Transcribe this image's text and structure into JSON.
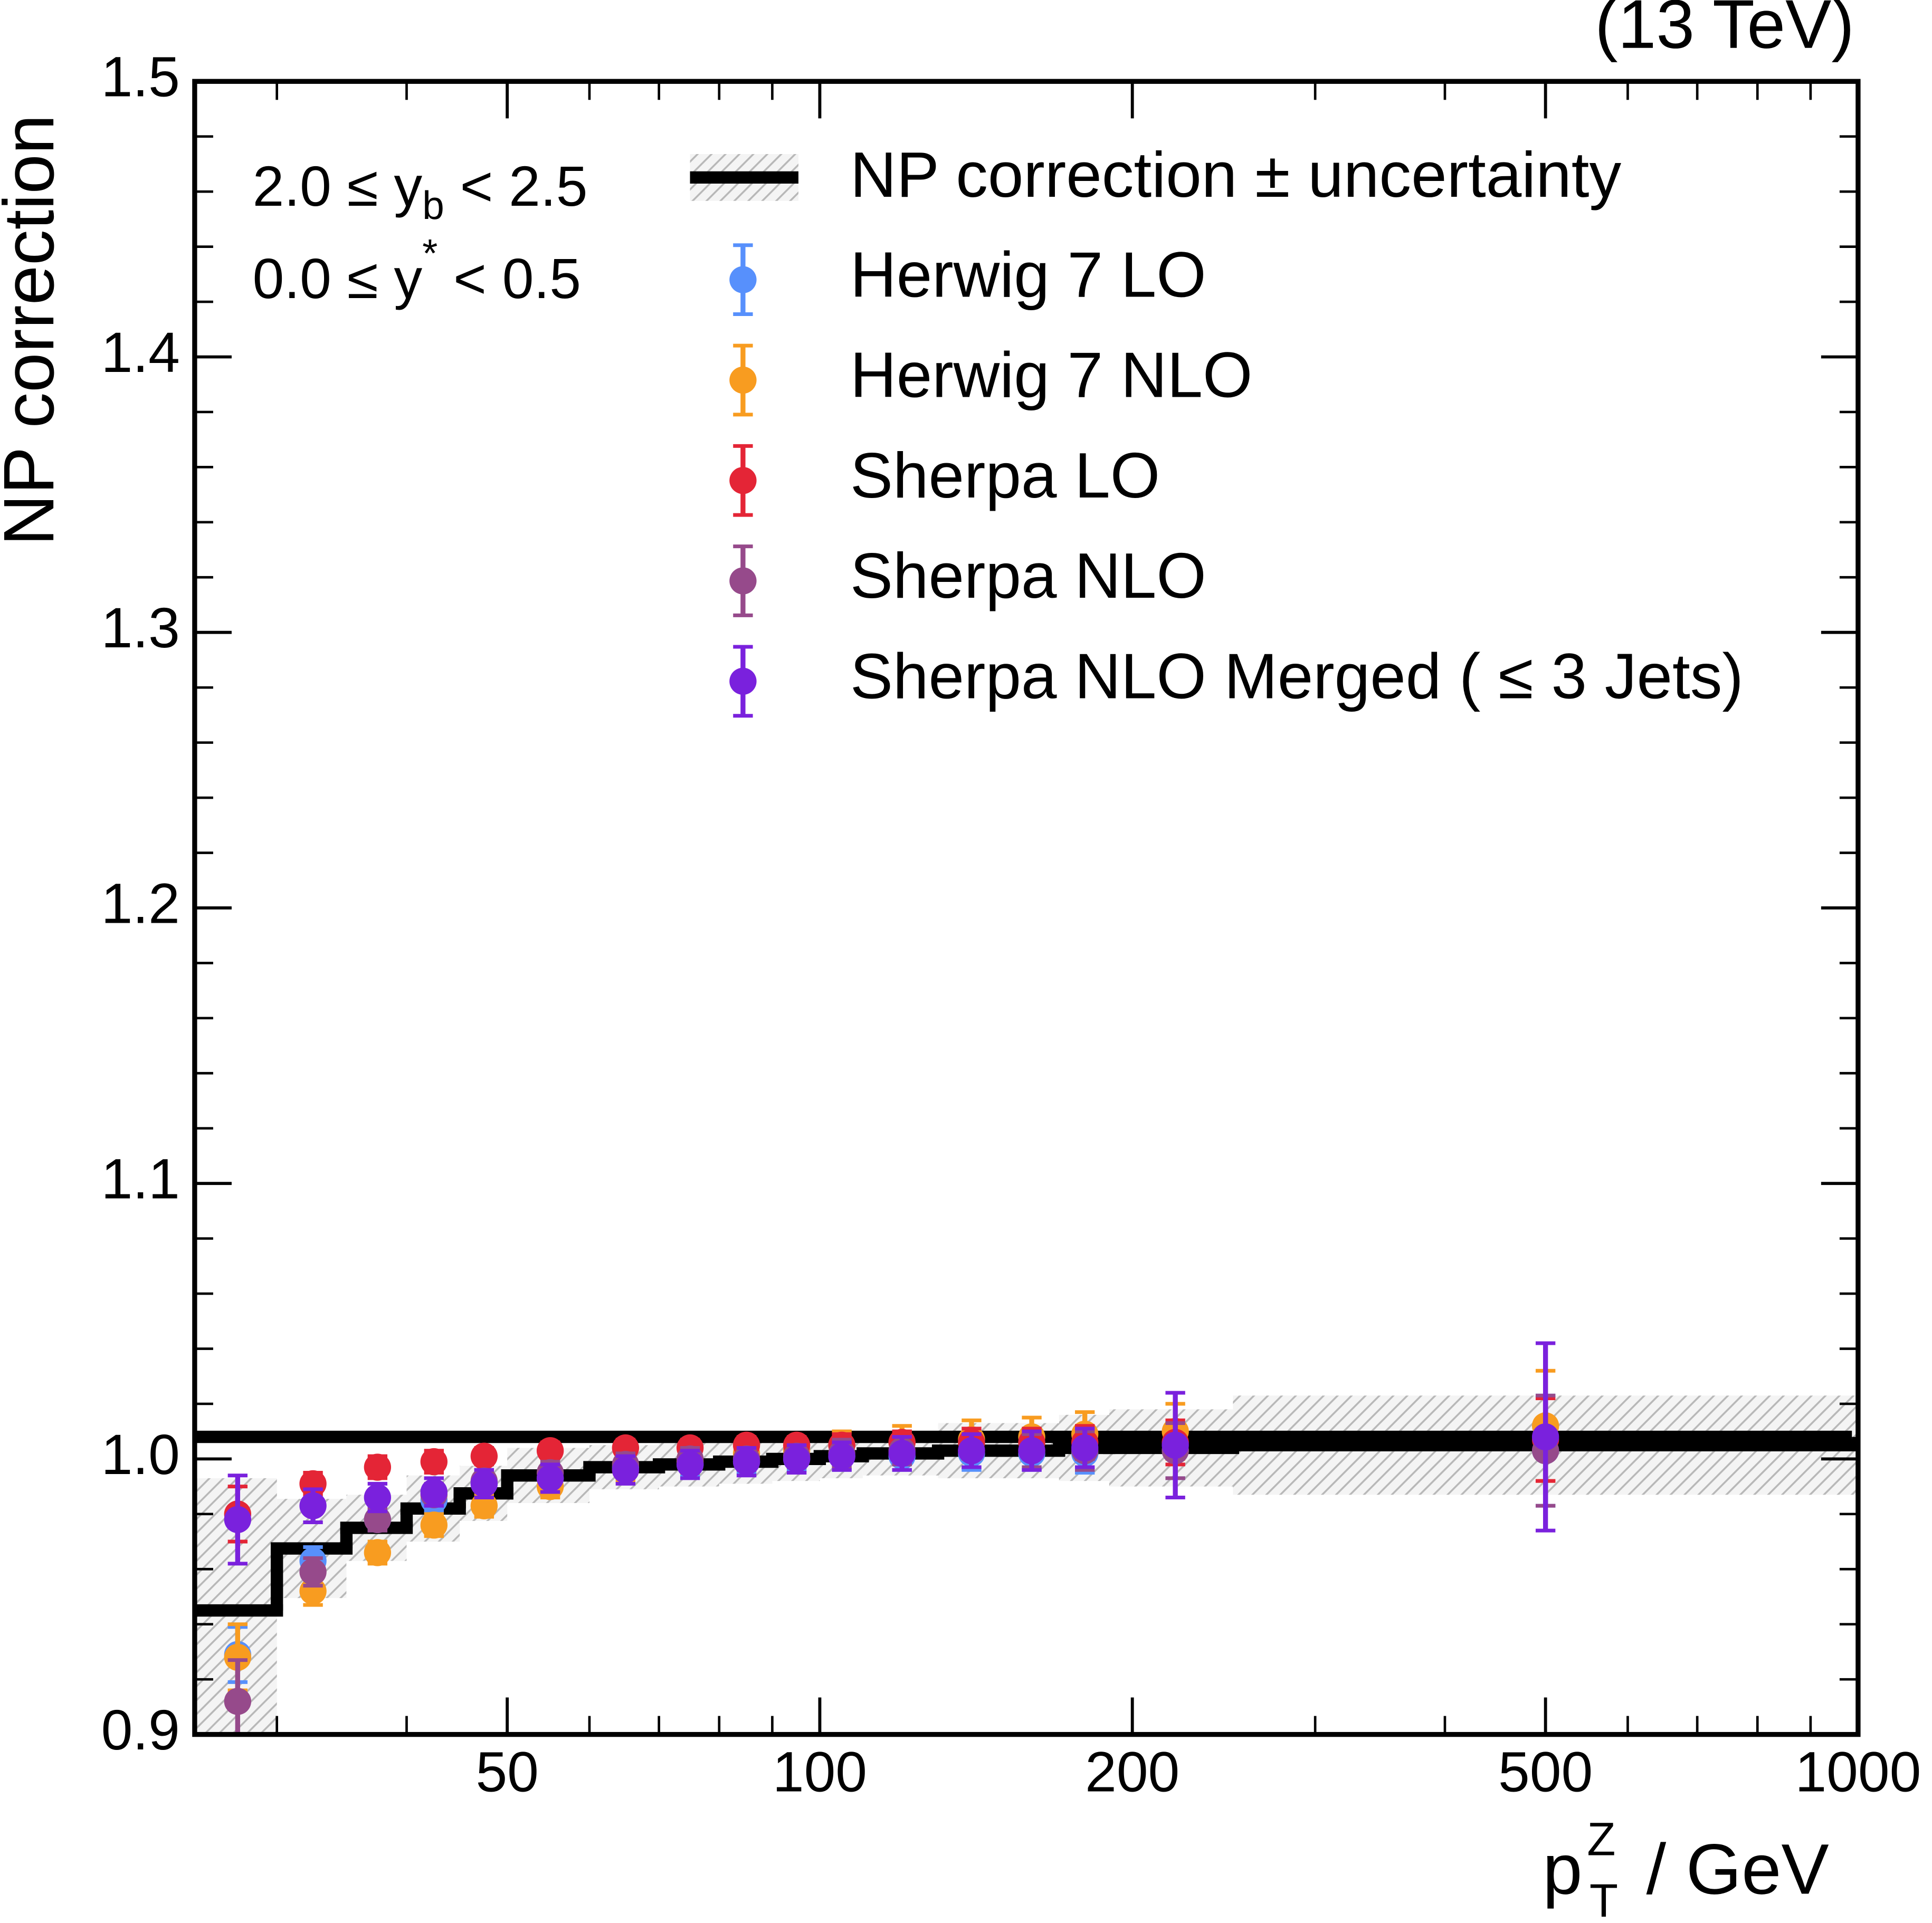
{
  "chart_data": {
    "type": "errorbar",
    "title": "(13 TeV)",
    "ylabel": "NP correction",
    "xlabel": {
      "base": "p",
      "sup": "Z",
      "sub": "T",
      "rest": " / GeV"
    },
    "annotations": [
      {
        "pre": "2.0 ≤ y",
        "sub": "b",
        "post": " < 2.5"
      },
      {
        "pre": "0.0 ≤ y",
        "sup": "*",
        "post": " < 0.5"
      }
    ],
    "xscale": "log",
    "xlim": [
      25,
      1000
    ],
    "xticks": [
      50,
      100,
      200,
      500,
      1000
    ],
    "xminorticks": [
      30,
      40,
      60,
      70,
      80,
      90,
      300,
      400,
      600,
      700,
      800,
      900
    ],
    "ylim": [
      0.9,
      1.5
    ],
    "yticks": [
      0.9,
      {
        "value": 1,
        "label": "1.0"
      },
      1.1,
      1.2,
      1.3,
      1.4,
      1.5
    ],
    "yminorticks": [
      0.92,
      0.94,
      0.96,
      0.98,
      1.02,
      1.04,
      1.06,
      1.08,
      1.12,
      1.14,
      1.16,
      1.18,
      1.22,
      1.24,
      1.26,
      1.28,
      1.32,
      1.34,
      1.36,
      1.38,
      1.42,
      1.44,
      1.46,
      1.48
    ],
    "step": {
      "name": "NP correction ± uncertainty",
      "color": "#000000",
      "bins": [
        25,
        30,
        35,
        40,
        45,
        50,
        60,
        70,
        80,
        90,
        100,
        110,
        130,
        150,
        170,
        190,
        250,
        1000
      ],
      "values": [
        0.945,
        0.9675,
        0.975,
        0.982,
        0.9875,
        0.994,
        0.997,
        0.998,
        0.999,
        1.0,
        1.001,
        1.002,
        1.003,
        1.003,
        1.004,
        1.004,
        1.005,
        1.008
      ],
      "errors": [
        0.048,
        0.018,
        0.012,
        0.012,
        0.01,
        0.01,
        0.008,
        0.008,
        0.008,
        0.008,
        0.008,
        0.008,
        0.01,
        0.01,
        0.012,
        0.014,
        0.018,
        0.034
      ]
    },
    "x": [
      27.5,
      32.5,
      37.5,
      42.5,
      47.5,
      55,
      65,
      75,
      85,
      95,
      105,
      120,
      140,
      160,
      180,
      220,
      500
    ],
    "series": [
      {
        "name": "Herwig 7 LO",
        "color": "#5790fc",
        "values": [
          0.929,
          0.963,
          0.978,
          0.985,
          0.991,
          0.993,
          0.997,
          0.998,
          0.999,
          1.0,
          1.001,
          1.001,
          1.002,
          1.002,
          1.002,
          1.003,
          1.003
        ],
        "errors": [
          0.01,
          0.005,
          0.004,
          0.004,
          0.004,
          0.004,
          0.004,
          0.004,
          0.004,
          0.004,
          0.005,
          0.005,
          0.006,
          0.006,
          0.007,
          0.01,
          0.02
        ]
      },
      {
        "name": "Herwig 7 NLO",
        "color": "#f89c20",
        "values": [
          0.928,
          0.952,
          0.966,
          0.976,
          0.983,
          0.99,
          0.996,
          0.999,
          1.002,
          1.003,
          1.005,
          1.006,
          1.007,
          1.008,
          1.009,
          1.01,
          1.012
        ],
        "errors": [
          0.012,
          0.005,
          0.004,
          0.004,
          0.004,
          0.004,
          0.004,
          0.004,
          0.004,
          0.004,
          0.005,
          0.006,
          0.007,
          0.007,
          0.008,
          0.01,
          0.02
        ]
      },
      {
        "name": "Sherpa LO",
        "color": "#e42536",
        "values": [
          0.98,
          0.991,
          0.997,
          0.999,
          1.001,
          1.003,
          1.004,
          1.004,
          1.005,
          1.005,
          1.005,
          1.006,
          1.006,
          1.006,
          1.006,
          1.006,
          1.007
        ],
        "errors": [
          0.01,
          0.004,
          0.004,
          0.004,
          0.003,
          0.003,
          0.003,
          0.003,
          0.003,
          0.003,
          0.004,
          0.004,
          0.005,
          0.005,
          0.006,
          0.008,
          0.015
        ]
      },
      {
        "name": "Sherpa NLO",
        "color": "#964a8b",
        "values": [
          0.912,
          0.959,
          0.978,
          0.987,
          0.992,
          0.995,
          0.998,
          1.0,
          1.0,
          1.001,
          1.002,
          1.003,
          1.003,
          1.003,
          1.003,
          1.003,
          1.003
        ],
        "errors": [
          0.015,
          0.005,
          0.004,
          0.004,
          0.004,
          0.004,
          0.004,
          0.004,
          0.004,
          0.004,
          0.005,
          0.005,
          0.006,
          0.006,
          0.007,
          0.01,
          0.02
        ]
      },
      {
        "name": "Sherpa NLO Merged ( ≤ 3 Jets)",
        "color": "#7a21dd",
        "values": [
          0.978,
          0.983,
          0.986,
          0.988,
          0.991,
          0.993,
          0.996,
          0.998,
          0.999,
          1.0,
          1.001,
          1.002,
          1.003,
          1.003,
          1.004,
          1.005,
          1.008
        ],
        "errors": [
          0.016,
          0.006,
          0.005,
          0.005,
          0.005,
          0.005,
          0.005,
          0.005,
          0.005,
          0.005,
          0.005,
          0.006,
          0.006,
          0.007,
          0.007,
          0.019,
          0.034
        ]
      }
    ]
  }
}
